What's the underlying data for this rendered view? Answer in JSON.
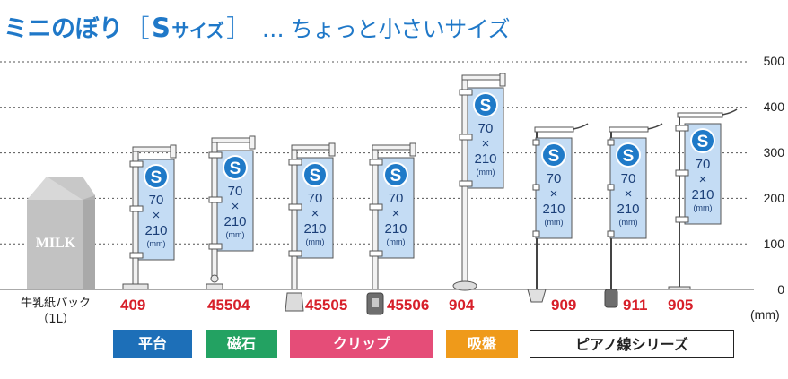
{
  "title": {
    "main": "ミニのぼり",
    "bracket_open": "［",
    "size_letter": "S",
    "size_word": "サイズ",
    "bracket_close": "］",
    "subtitle": "… ちょっと小さいサイズ"
  },
  "axis": {
    "ticks": [
      "500",
      "400",
      "300",
      "200",
      "100",
      "0"
    ],
    "unit": "(mm)"
  },
  "milk": {
    "carton_text": "MILK",
    "label_line1": "牛乳紙パック",
    "label_line2": "（1L）"
  },
  "flag": {
    "badge": "S",
    "w": "70",
    "x": "×",
    "h": "210",
    "unit": "(mm)"
  },
  "products": [
    "409",
    "45504",
    "45505",
    "45506",
    "904",
    "909",
    "911",
    "905"
  ],
  "categories": [
    {
      "label": "平台",
      "color": "#1d6fb8"
    },
    {
      "label": "磁石",
      "color": "#23a262"
    },
    {
      "label": "クリップ",
      "color": "#e54d78"
    },
    {
      "label": "吸盤",
      "color": "#ef9a1a"
    },
    {
      "label": "ピアノ線シリーズ",
      "color": "#ffffff"
    }
  ],
  "chart_data": {
    "type": "table",
    "title": "ミニのぼり［Sサイズ］… ちょっと小さいサイズ",
    "ylabel": "(mm)",
    "ylim": [
      0,
      500
    ],
    "grid": true,
    "flag_size": "70 × 210 (mm)",
    "reference": "牛乳紙パック（1L）",
    "items": [
      "409",
      "45504",
      "45505",
      "45506",
      "904",
      "909",
      "911",
      "905"
    ]
  }
}
